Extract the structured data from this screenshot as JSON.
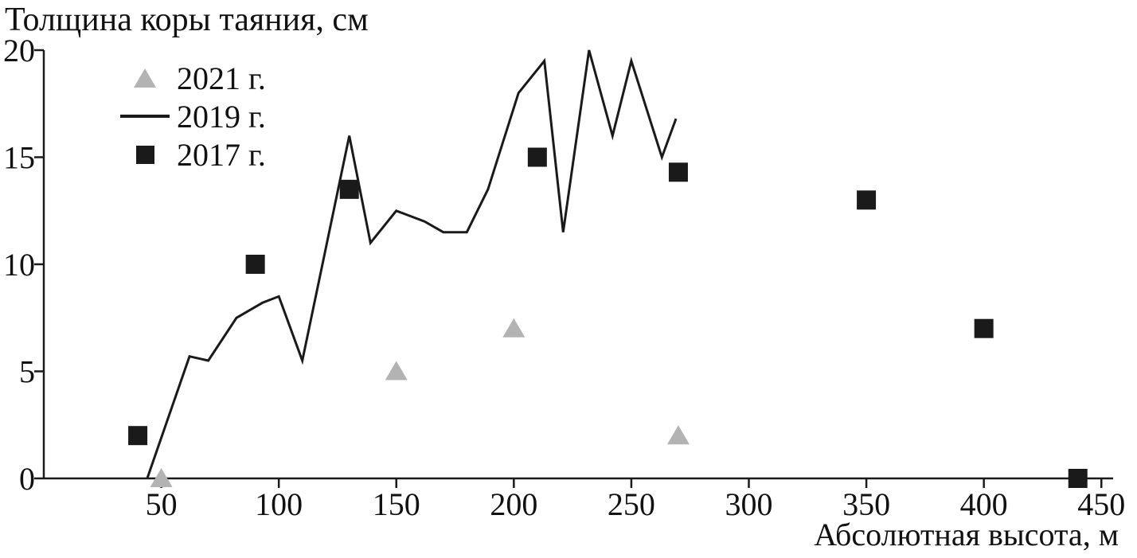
{
  "chart_data": {
    "type": "line",
    "title": "Толщина коры таяния, см",
    "xlabel": "Абсолютная высота, м",
    "ylabel": "Толщина коры таяния, см",
    "xlim": [
      0,
      455
    ],
    "ylim": [
      0,
      20
    ],
    "x_ticks": [
      50,
      100,
      150,
      200,
      250,
      300,
      350,
      400,
      450
    ],
    "y_ticks": [
      0,
      5,
      10,
      15,
      20
    ],
    "grid": false,
    "legend_position": "upper-left-inside",
    "colors": {
      "axis": "#1a1a1a",
      "line_2019": "#1a1a1a",
      "square_2017": "#1a1a1a",
      "triangle_2021": "#b3b3b3"
    },
    "series": [
      {
        "name": "2021 г.",
        "type": "scatter",
        "marker": "triangle",
        "color": "#b3b3b3",
        "points": [
          [
            50,
            0
          ],
          [
            150,
            5
          ],
          [
            200,
            7
          ],
          [
            270,
            2
          ]
        ]
      },
      {
        "name": "2019 г.",
        "type": "line",
        "marker": "none",
        "color": "#1a1a1a",
        "points": [
          [
            44,
            0
          ],
          [
            62,
            5.7
          ],
          [
            70,
            5.5
          ],
          [
            82,
            7.5
          ],
          [
            93,
            8.2
          ],
          [
            100,
            8.5
          ],
          [
            110,
            5.5
          ],
          [
            130,
            16
          ],
          [
            139,
            11
          ],
          [
            150,
            12.5
          ],
          [
            162,
            12
          ],
          [
            170,
            11.5
          ],
          [
            180,
            11.5
          ],
          [
            189,
            13.5
          ],
          [
            202,
            18
          ],
          [
            213,
            19.5
          ],
          [
            221,
            11.5
          ],
          [
            232,
            20
          ],
          [
            242,
            16
          ],
          [
            250,
            19.5
          ],
          [
            263,
            15
          ],
          [
            269,
            16.8
          ]
        ]
      },
      {
        "name": "2017 г.",
        "type": "scatter",
        "marker": "square",
        "color": "#1a1a1a",
        "points": [
          [
            40,
            2
          ],
          [
            90,
            10
          ],
          [
            130,
            13.5
          ],
          [
            210,
            15
          ],
          [
            270,
            14.3
          ],
          [
            350,
            13
          ],
          [
            400,
            7
          ],
          [
            440,
            0
          ]
        ]
      }
    ]
  }
}
